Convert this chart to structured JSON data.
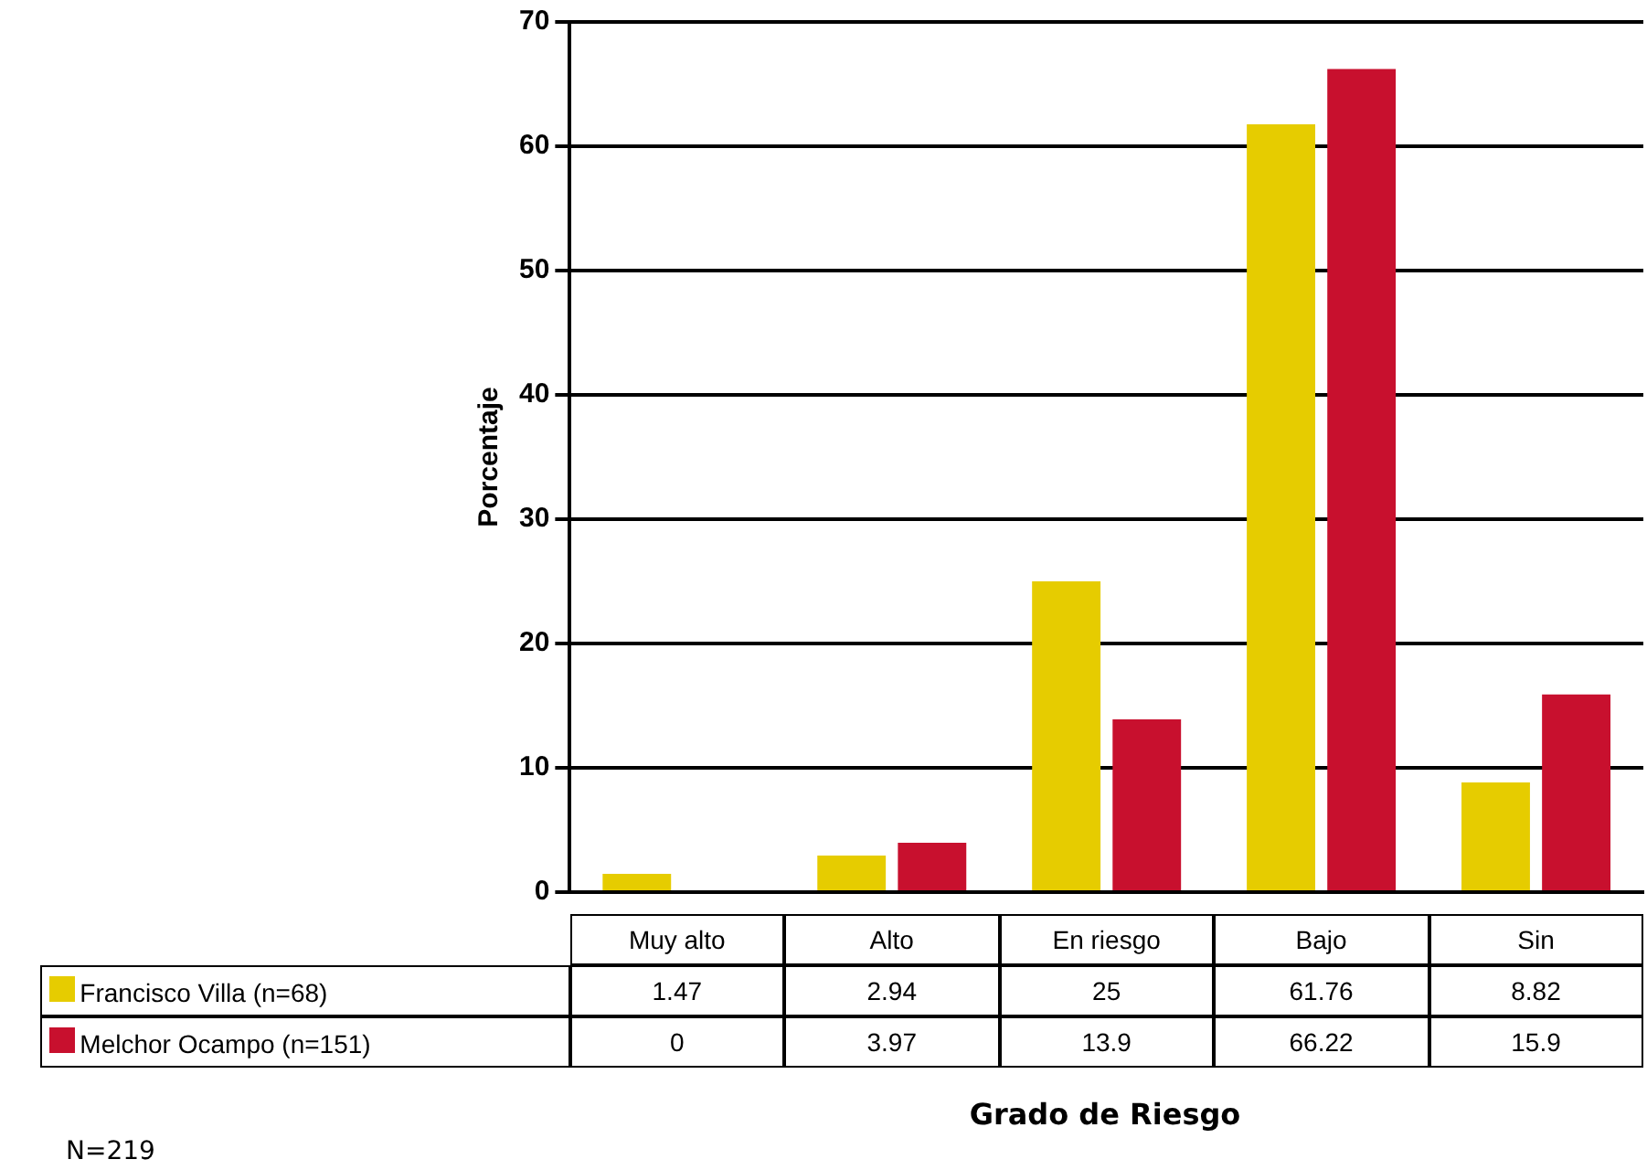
{
  "chart_data": {
    "type": "bar",
    "xlabel": "Grado de Riesgo",
    "ylabel": "Porcentaje",
    "categories": [
      "Muy alto",
      "Alto",
      "En riesgo",
      "Bajo",
      "Sin"
    ],
    "series": [
      {
        "name": "Francisco Villa (n=68)",
        "color": "#e6cc00",
        "values": [
          1.47,
          2.94,
          25,
          61.76,
          8.82
        ]
      },
      {
        "name": "Melchor Ocampo (n=151)",
        "color": "#c8102e",
        "values": [
          0,
          3.97,
          13.9,
          66.22,
          15.9
        ]
      }
    ],
    "ylim": [
      0,
      70
    ],
    "yticks": [
      0,
      10,
      20,
      30,
      40,
      50,
      60,
      70
    ],
    "grid": "y",
    "legend": "bottom",
    "data_labels": true,
    "annotations": [
      "N=219"
    ]
  }
}
